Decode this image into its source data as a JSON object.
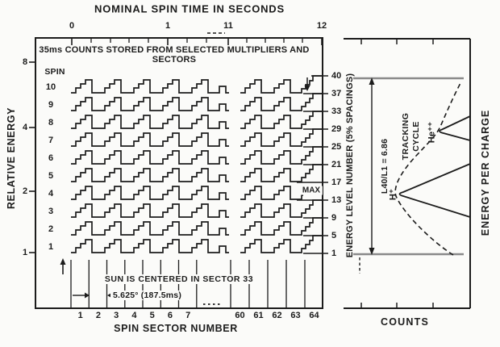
{
  "figure": {
    "top_axis": {
      "title": "NOMINAL SPIN TIME IN SECONDS",
      "tick_labels": [
        "0",
        "1",
        "11",
        "12"
      ]
    },
    "left_axis": {
      "title": "RELATIVE ENERGY",
      "tick_labels": [
        "8",
        "4",
        "2",
        "1"
      ]
    },
    "main_panel": {
      "caption_line1": "35ms COUNTS STORED FROM SELECTED MULTIPLIERS AND",
      "caption_line2": "SECTORS",
      "spin_header": "SPIN",
      "spin_numbers": [
        "10",
        "9",
        "8",
        "7",
        "6",
        "5",
        "4",
        "3",
        "2",
        "1"
      ],
      "max_label": "MAX",
      "sun_text": "SUN IS CENTERED IN SECTOR 33",
      "sector_width_text": "5.625° (187.5ms)"
    },
    "right_levels": {
      "title": "ENERGY LEVEL NUMBER (5% SPACINGS)",
      "values": [
        "40",
        "37",
        "33",
        "29",
        "25",
        "21",
        "17",
        "13",
        "9",
        "5",
        "1"
      ]
    },
    "bottom_axis": {
      "title": "SPIN SECTOR NUMBER",
      "sector_labels_left": [
        "1",
        "2",
        "3",
        "4",
        "5",
        "6",
        "7"
      ],
      "sector_labels_right": [
        "60",
        "61",
        "62",
        "63",
        "64"
      ]
    },
    "right_panel": {
      "ratio_label": "L40/L1 = 6.86",
      "tracking_line1": "TRACKING",
      "tracking_line2": "CYCLE",
      "h_label": "H⁺",
      "he_label": "He⁺⁺",
      "counts_label": "COUNTS",
      "energy_label": "ENERGY PER CHARGE"
    },
    "colors": {
      "ink": "#1c1c1c",
      "gray_line": "#8a8a8a",
      "background": "#fbfbf9"
    }
  }
}
